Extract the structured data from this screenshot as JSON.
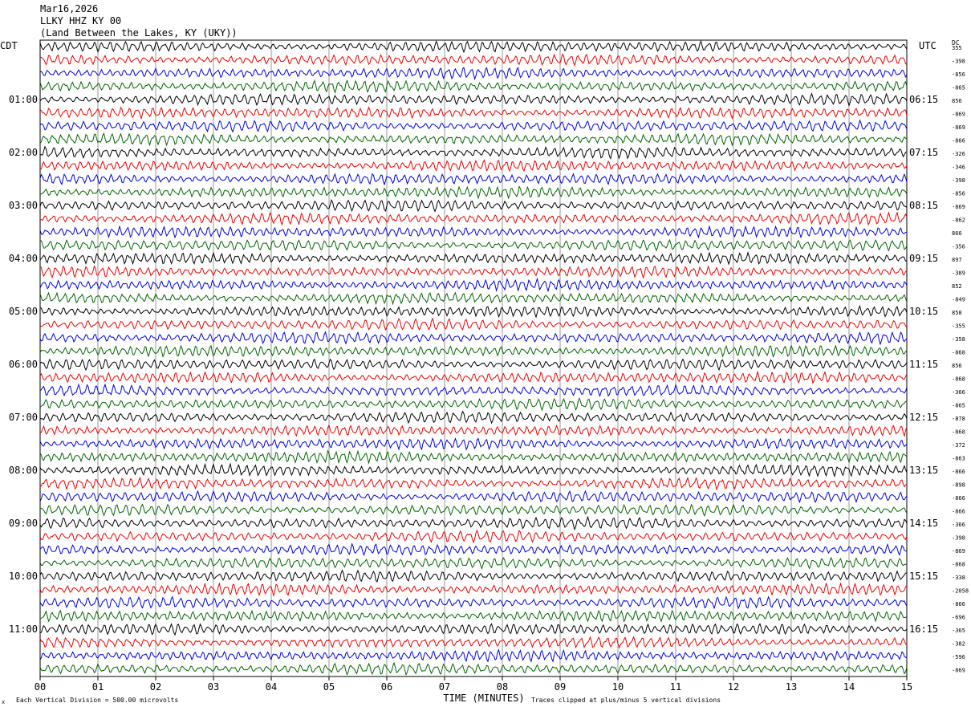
{
  "header": {
    "date": "Mar16,2026",
    "station": "LLKY HHZ KY 00",
    "location": "(Land Between the Lakes, KY (UKY))"
  },
  "chart_data": {
    "type": "line",
    "title": "",
    "left_timezone": "CDT",
    "right_timezone": "UTC",
    "dc_label": "DC",
    "xlabel": "TIME (MINUTES)",
    "x_ticks": [
      "00",
      "01",
      "02",
      "03",
      "04",
      "05",
      "06",
      "07",
      "08",
      "09",
      "10",
      "11",
      "12",
      "13",
      "14",
      "15"
    ],
    "xlim": [
      0,
      15
    ],
    "left_hour_labels": [
      "01:00",
      "02:00",
      "03:00",
      "04:00",
      "05:00",
      "06:00",
      "07:00",
      "08:00",
      "09:00",
      "10:00",
      "11:00"
    ],
    "right_hour_labels": [
      "06:15",
      "07:15",
      "08:15",
      "09:15",
      "10:15",
      "11:15",
      "12:15",
      "13:15",
      "14:15",
      "15:15",
      "16:15"
    ],
    "trace_colors": [
      "#000000",
      "#ee0000",
      "#0000dd",
      "#006600"
    ],
    "trace_count": 48,
    "dc_offsets": [
      "355",
      "-398",
      "-856",
      "-865",
      "856",
      "-869",
      "-869",
      "-866",
      "-326",
      "-346",
      "-398",
      "-856",
      "-869",
      "-862",
      "866",
      "-356",
      "897",
      "-389",
      "852",
      "-849",
      "858",
      "-355",
      "-358",
      "-868",
      "856",
      "-868",
      "-366",
      "-865",
      "-878",
      "-868",
      "-372",
      "-863",
      "-866",
      "-898",
      "-866",
      "-866",
      "-366",
      "-398",
      "-869",
      "-868",
      "-338",
      "-2058",
      "-866",
      "-696",
      "-365",
      "-382",
      "-596",
      "-869"
    ],
    "footer_left": "Each Vertical Division =  500.00 microvolts",
    "footer_right": "Traces clipped at plus/minus 5 vertical divisions",
    "footer_mark": "x"
  }
}
